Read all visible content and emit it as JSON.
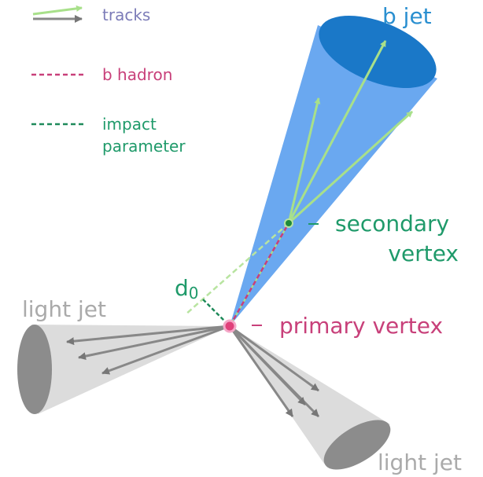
{
  "legend": [
    {
      "label": "tracks"
    },
    {
      "label": "b hadron"
    },
    {
      "label": [
        "impact",
        "parameter"
      ]
    }
  ],
  "labels": {
    "b_jet": "b jet",
    "secondary_vertex": [
      "secondary",
      "vertex"
    ],
    "primary_vertex": "primary vertex",
    "d0": {
      "main": "d",
      "sub": "0"
    },
    "light_jet_left": "light jet",
    "light_jet_right": "light jet"
  }
}
